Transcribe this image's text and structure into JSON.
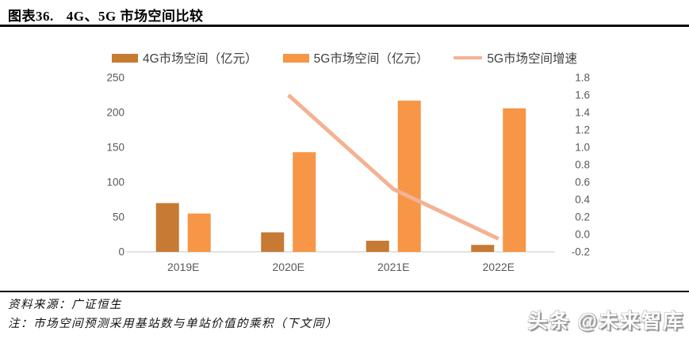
{
  "header": {
    "figure_label": "图表36.",
    "title": "4G、5G 市场空间比较"
  },
  "chart_data": {
    "type": "bar",
    "title": "4G、5G 市场空间比较",
    "categories": [
      "2019E",
      "2020E",
      "2021E",
      "2022E"
    ],
    "series": [
      {
        "name": "4G市场空间（亿元）",
        "type": "bar",
        "axis": "left",
        "color": "#c67a33",
        "values": [
          70,
          28,
          16,
          10
        ]
      },
      {
        "name": "5G市场空间（亿元）",
        "type": "bar",
        "axis": "left",
        "color": "#f69646",
        "values": [
          55,
          143,
          217,
          206
        ]
      },
      {
        "name": "5G市场空间增速",
        "type": "line",
        "axis": "right",
        "color": "#f4b294",
        "values": [
          null,
          1.6,
          0.52,
          -0.05
        ]
      }
    ],
    "left_axis": {
      "min": 0,
      "max": 250,
      "step": 50,
      "ticks": [
        "0",
        "50",
        "100",
        "150",
        "200",
        "250"
      ]
    },
    "right_axis": {
      "min": -0.2,
      "max": 1.8,
      "step": 0.2,
      "ticks": [
        "-0.2",
        "0.0",
        "0.2",
        "0.4",
        "0.6",
        "0.8",
        "1.0",
        "1.2",
        "1.4",
        "1.6",
        "1.8"
      ]
    },
    "grid": false,
    "legend_position": "top",
    "axis_text_color": "#595959",
    "baseline_color": "#d9d9d9"
  },
  "footer": {
    "source": "资料来源：广证恒生",
    "note": "注：市场空间预测采用基站数与单站价值的乘积（下文同）",
    "watermark": "头条 @未来智库"
  }
}
